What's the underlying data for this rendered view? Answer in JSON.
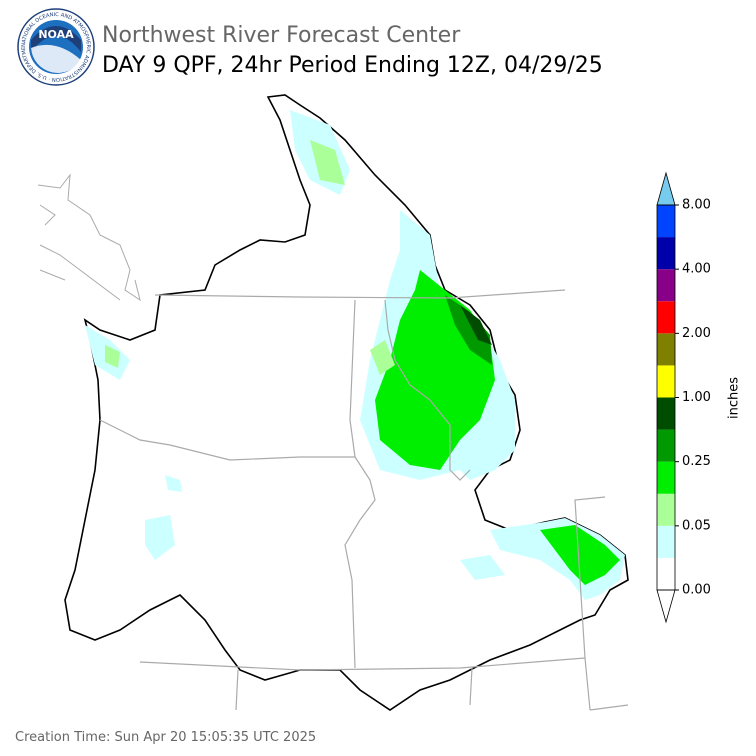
{
  "header": {
    "agency": "Northwest River Forecast Center",
    "title": "DAY 9 QPF, 24hr Period Ending 12Z, 04/29/25"
  },
  "logo": {
    "label": "NOAA",
    "ring_text": "NATIONAL OCEANIC AND ATMOSPHERIC ADMINISTRATION · U.S. DEPARTMENT OF COMMERCE"
  },
  "colorbar": {
    "label": "inches",
    "ticks": [
      "0.00",
      "0.05",
      "0.25",
      "1.00",
      "2.00",
      "4.00",
      "8.00"
    ],
    "colors": [
      "#ffffff",
      "#ccffff",
      "#aaff99",
      "#00ee00",
      "#009900",
      "#004d00",
      "#ffff00",
      "#808000",
      "#ff0000",
      "#880088",
      "#0000aa",
      "#0044ff"
    ],
    "over_color": "#77ccee",
    "under_color": "#ffffff"
  },
  "footer": {
    "creation_time": "Creation Time: Sun Apr 20 15:05:35 UTC 2025"
  }
}
